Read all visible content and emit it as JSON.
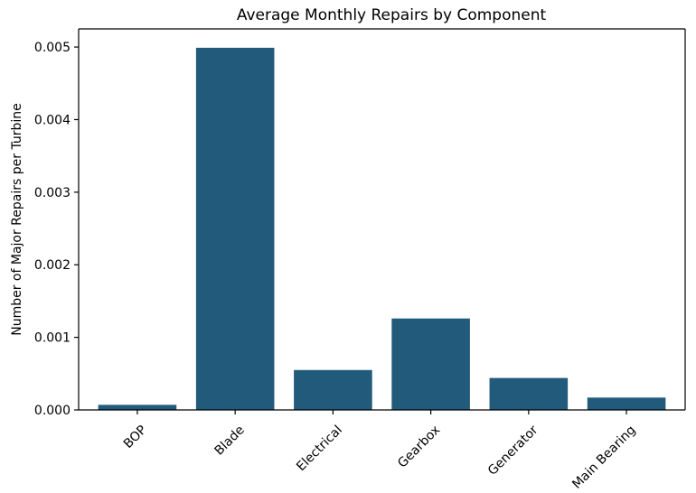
{
  "chart_data": {
    "type": "bar",
    "title": "Average Monthly Repairs by Component",
    "xlabel": "",
    "ylabel": "Number of Major Repairs per Turbine",
    "categories": [
      "BOP",
      "Blade",
      "Electrical",
      "Gearbox",
      "Generator",
      "Main Bearing"
    ],
    "values": [
      7e-05,
      0.00499,
      0.00055,
      0.00126,
      0.00044,
      0.00017
    ],
    "ylim": [
      0,
      0.00525
    ],
    "yticks": [
      0.0,
      0.001,
      0.002,
      0.003,
      0.004,
      0.005
    ],
    "ytick_labels": [
      "0.000",
      "0.001",
      "0.002",
      "0.003",
      "0.004",
      "0.005"
    ],
    "bar_color": "#215a7b",
    "grid": false,
    "legend": "none"
  }
}
